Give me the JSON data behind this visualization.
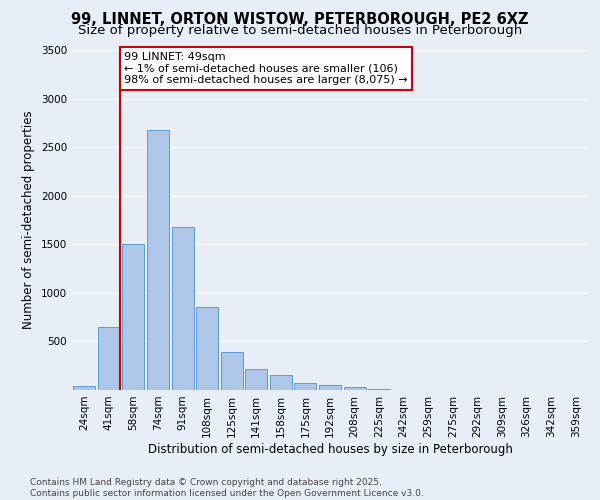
{
  "title": "99, LINNET, ORTON WISTOW, PETERBOROUGH, PE2 6XZ",
  "subtitle": "Size of property relative to semi-detached houses in Peterborough",
  "xlabel": "Distribution of semi-detached houses by size in Peterborough",
  "ylabel": "Number of semi-detached properties",
  "categories": [
    "24sqm",
    "41sqm",
    "58sqm",
    "74sqm",
    "91sqm",
    "108sqm",
    "125sqm",
    "141sqm",
    "158sqm",
    "175sqm",
    "192sqm",
    "208sqm",
    "225sqm",
    "242sqm",
    "259sqm",
    "275sqm",
    "292sqm",
    "309sqm",
    "326sqm",
    "342sqm",
    "359sqm"
  ],
  "values": [
    40,
    650,
    1500,
    2680,
    1680,
    850,
    390,
    215,
    155,
    70,
    55,
    35,
    15,
    5,
    2,
    2,
    1,
    0,
    0,
    0,
    0
  ],
  "bar_color": "#aec6e8",
  "bar_edge_color": "#5b9bd5",
  "background_color": "#e8eef8",
  "grid_color": "#ffffff",
  "annotation_text": "99 LINNET: 49sqm\n← 1% of semi-detached houses are smaller (106)\n98% of semi-detached houses are larger (8,075) →",
  "annotation_box_color": "#ffffff",
  "annotation_box_edge_color": "#cc0000",
  "vline_color": "#cc0000",
  "ylim": [
    0,
    3500
  ],
  "yticks": [
    0,
    500,
    1000,
    1500,
    2000,
    2500,
    3000,
    3500
  ],
  "footer": "Contains HM Land Registry data © Crown copyright and database right 2025.\nContains public sector information licensed under the Open Government Licence v3.0.",
  "title_fontsize": 10.5,
  "subtitle_fontsize": 9.5,
  "axis_label_fontsize": 8.5,
  "tick_fontsize": 7.5,
  "annotation_fontsize": 8,
  "footer_fontsize": 6.5
}
